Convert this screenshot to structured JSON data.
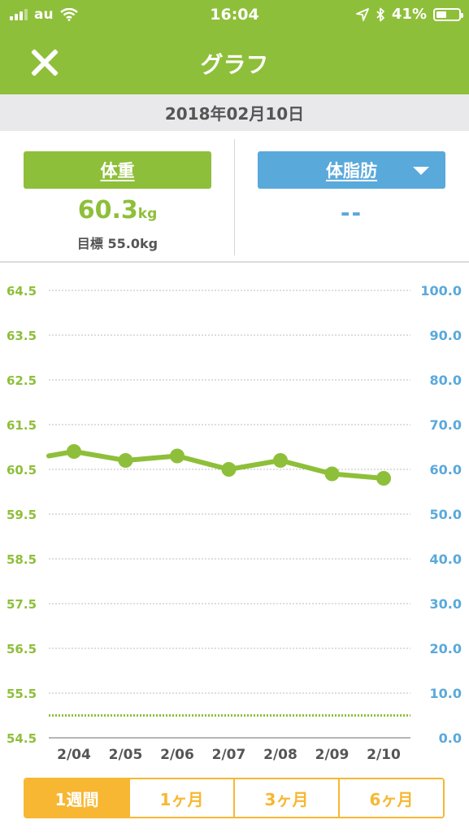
{
  "status_bar": {
    "carrier": "au",
    "time": "16:04",
    "battery": "41%"
  },
  "header": {
    "title": "グラフ"
  },
  "date": "2018年02月10日",
  "weight_panel": {
    "label": "体重",
    "value": "60.3",
    "unit": "kg",
    "goal": "目標 55.0kg"
  },
  "fat_panel": {
    "label": "体脂肪",
    "value": "--"
  },
  "periods": {
    "week": "1週間",
    "one_month": "1ヶ月",
    "three_months": "3ヶ月",
    "six_months": "6ヶ月"
  },
  "colors": {
    "weight": "#8ebf3a",
    "fat": "#5aa9db",
    "period_accent": "#f7b733"
  },
  "chart_data": {
    "type": "line",
    "categories": [
      "2/04",
      "2/05",
      "2/06",
      "2/07",
      "2/08",
      "2/09",
      "2/10"
    ],
    "left_axis": {
      "ticks": [
        "64.5",
        "63.5",
        "62.5",
        "61.5",
        "60.5",
        "59.5",
        "58.5",
        "57.5",
        "56.5",
        "55.5",
        "54.5"
      ],
      "ylim": [
        54.5,
        64.5
      ]
    },
    "right_axis": {
      "ticks": [
        "100.0",
        "90.0",
        "80.0",
        "70.0",
        "60.0",
        "50.0",
        "40.0",
        "30.0",
        "20.0",
        "10.0",
        "0.0"
      ],
      "ylim": [
        0,
        100
      ]
    },
    "series": [
      {
        "values": [
          60.9,
          60.7,
          60.8,
          60.5,
          60.7,
          60.4,
          60.3
        ]
      }
    ],
    "lead_in_value": 60.8,
    "goal_line": 55.0,
    "grid": true
  }
}
